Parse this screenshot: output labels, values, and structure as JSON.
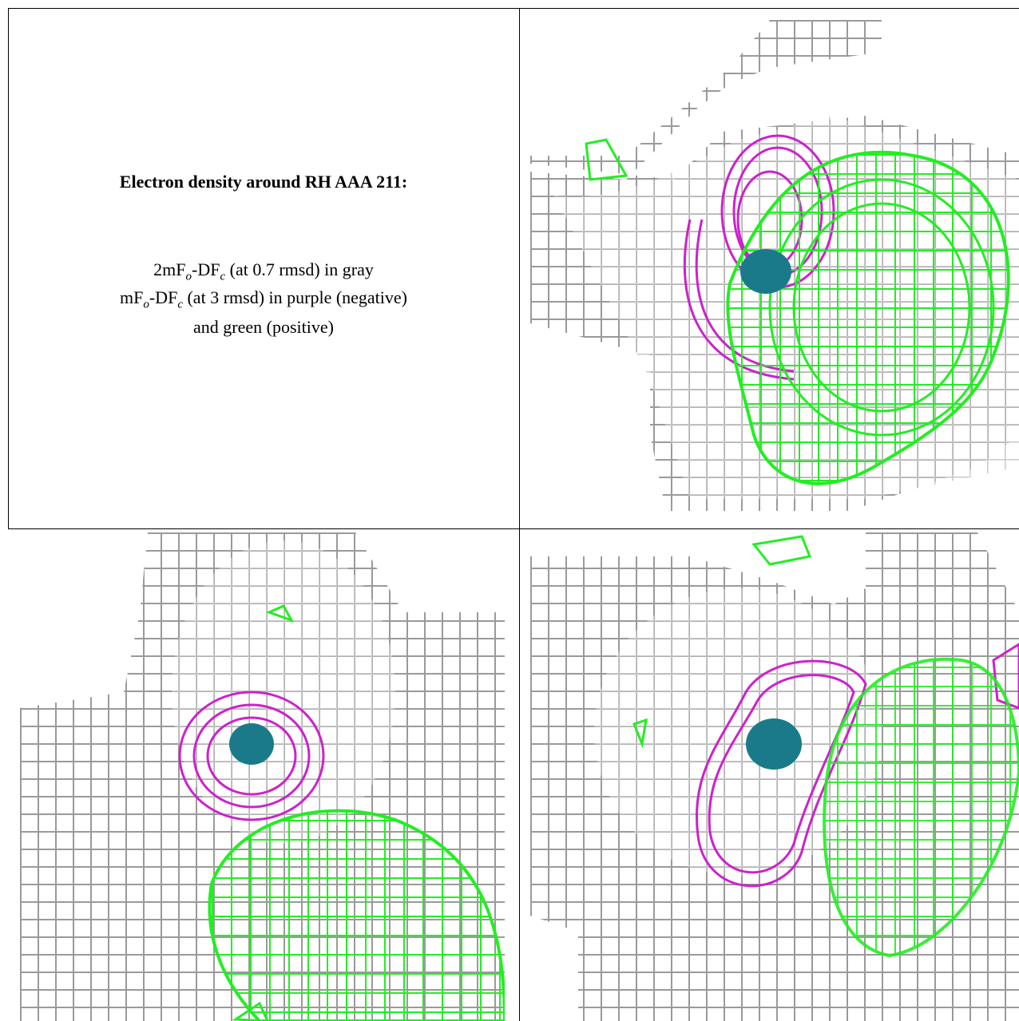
{
  "panel": {
    "title": "Electron density around RH AAA 211:",
    "line1": [
      "2mF",
      "o",
      "-DF",
      "c",
      " (at 0.7 rmsd) in gray"
    ],
    "line2": [
      "mF",
      "o",
      "-DF",
      "c",
      " (at 3 rmsd) in purple (negative)"
    ],
    "line3": "and green (positive)"
  }
}
